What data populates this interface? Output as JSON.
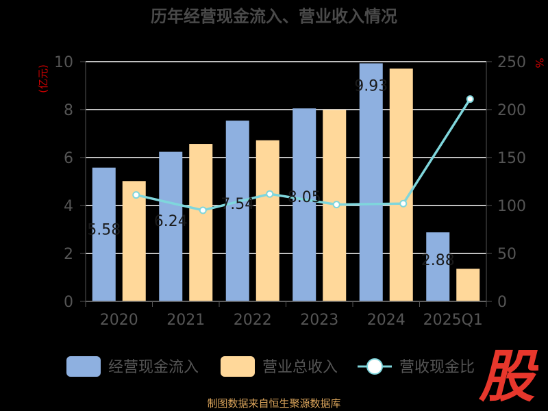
{
  "chart_data": {
    "type": "bar",
    "title": "历年经营现金流入、营业收入情况",
    "categories": [
      "2020",
      "2021",
      "2022",
      "2023",
      "2024",
      "2025Q1"
    ],
    "ylabel_left": "(亿元)",
    "ylabel_right": "%",
    "y_left_ticks": [
      "0",
      "2",
      "4",
      "6",
      "8",
      "10"
    ],
    "y_right_ticks": [
      "0",
      "50",
      "100",
      "150",
      "200",
      "250"
    ],
    "ylim_left": [
      0,
      10
    ],
    "ylim_right": [
      0,
      250
    ],
    "series": [
      {
        "name": "经营现金流入",
        "kind": "bar",
        "axis": "left",
        "color": "#8eb0e0",
        "values": [
          5.58,
          6.24,
          7.54,
          8.05,
          9.93,
          2.88
        ],
        "labels": [
          "5.58",
          "6.24",
          "7.54",
          "8.05",
          "9.93",
          "2.88"
        ]
      },
      {
        "name": "营业总收入",
        "kind": "bar",
        "axis": "left",
        "color": "#ffd89a",
        "values": [
          5.02,
          6.57,
          6.72,
          7.99,
          9.71,
          1.36
        ]
      },
      {
        "name": "营收现金比",
        "kind": "line",
        "axis": "right",
        "color": "#7fd6dc",
        "values": [
          111,
          95,
          112,
          101,
          102,
          211
        ]
      }
    ],
    "grid": true,
    "legend_position": "bottom"
  },
  "footer": "制图数据来自恒生聚源数据库",
  "stamp_text": "股",
  "colors": {
    "background": "#000000",
    "title": "#4a4a4a",
    "axis_label": "#cc0000",
    "tick": "#555555",
    "grid": "#ffffff",
    "footer": "#d9a35a",
    "stamp": "#e8372c"
  }
}
